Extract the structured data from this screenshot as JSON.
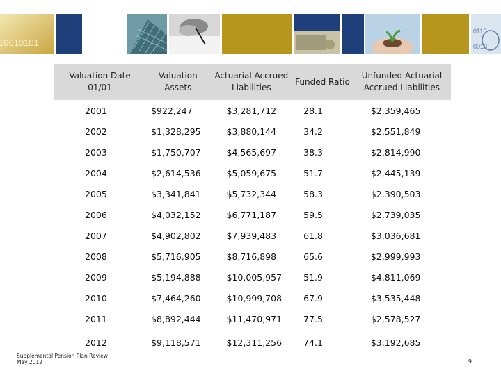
{
  "banner": {
    "tile_icons": [
      "binary-code-image",
      "office-building-image",
      "signing-document-image",
      "money-image",
      "hands-seedling-image",
      "binary-code-image"
    ],
    "binary_text": "10010101",
    "colors": {
      "gold": "#b8961e",
      "navy": "#1f3f7a",
      "steel": "#5b7fa3"
    }
  },
  "table": {
    "headers": [
      {
        "line1": "Valuation Date",
        "line2": "01/01"
      },
      {
        "line1": "Valuation",
        "line2": "Assets"
      },
      {
        "line1": "Actuarial Accrued",
        "line2": "Liabilities"
      },
      {
        "line1": "Funded Ratio",
        "line2": ""
      },
      {
        "line1": "Unfunded Actuarial",
        "line2": "Accrued Liabilities"
      }
    ],
    "rows": [
      [
        "2001",
        "$922,247",
        "$3,281,712",
        "28.1",
        "$2,359,465"
      ],
      [
        "2002",
        "$1,328,295",
        "$3,880,144",
        "34.2",
        "$2,551,849"
      ],
      [
        "2003",
        "$1,750,707",
        "$4,565,697",
        "38.3",
        "$2,814,990"
      ],
      [
        "2004",
        "$2,614,536",
        "$5,059,675",
        "51.7",
        "$2,445,139"
      ],
      [
        "2005",
        "$3,341,841",
        "$5,732,344",
        "58.3",
        "$2,390,503"
      ],
      [
        "2006",
        "$4,032,152",
        "$6,771,187",
        "59.5",
        "$2,739,035"
      ],
      [
        "2007",
        "$4,902,802",
        "$7,939,483",
        "61.8",
        "$3,036,681"
      ],
      [
        "2008",
        "$5,716,905",
        "$8,716,898",
        "65.6",
        "$2,999,993"
      ],
      [
        "2009",
        "$5,194,888",
        "$10,005,957",
        "51.9",
        "$4,811,069"
      ],
      [
        "2010",
        "$7,464,260",
        "$10,999,708",
        "67.9",
        "$3,535,448"
      ],
      [
        "2011",
        "$8,892,444",
        "$11,470,971",
        "77.5",
        "$2,578,527"
      ],
      [
        "2012",
        "$9,118,571",
        "$12,311,256",
        "74.1",
        "$3,192,685"
      ]
    ]
  },
  "footer": {
    "line1": "Supplemental Pension Plan Review",
    "line2": "May 2012",
    "page_number": "9"
  }
}
